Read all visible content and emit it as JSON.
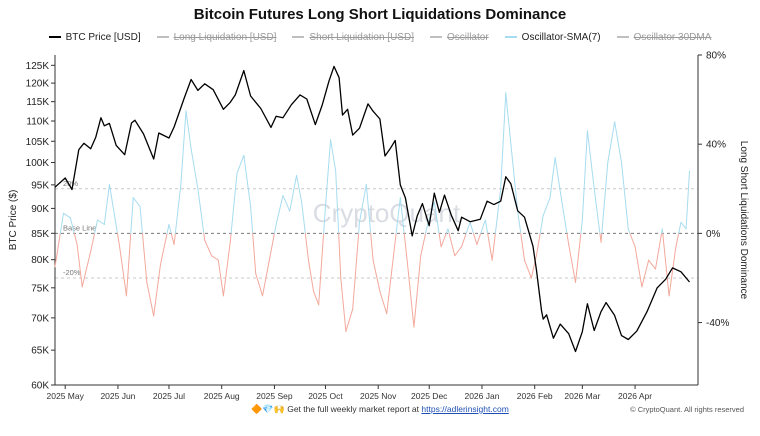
{
  "chart_data": {
    "type": "line",
    "title": "Bitcoin Futures Long Short Liquidations Dominance",
    "watermark": "CryptoQuant",
    "legend": [
      {
        "name": "BTC Price [USD]",
        "color": "#000000",
        "visible": true
      },
      {
        "name": "Long Liquidation [USD]",
        "color": "#9a9a9a",
        "visible": false
      },
      {
        "name": "Short Liquidation [USD]",
        "color": "#9a9a9a",
        "visible": false
      },
      {
        "name": "Oscillator",
        "color": "#9a9a9a",
        "visible": false
      },
      {
        "name": "Oscillator-SMA(7)",
        "color": "#a6dcef",
        "visible": true
      },
      {
        "name": "Oscillator 30DMA",
        "color": "#9a9a9a",
        "visible": false
      }
    ],
    "legend_placement": "top-center",
    "y_left": {
      "label": "BTC Price ($)",
      "scale": "log",
      "range": [
        60000,
        128000
      ],
      "ticks": [
        60000,
        65000,
        70000,
        75000,
        80000,
        85000,
        90000,
        95000,
        100000,
        105000,
        110000,
        115000,
        120000,
        125000
      ],
      "tick_labels": [
        "60K",
        "65K",
        "70K",
        "75K",
        "80K",
        "85K",
        "90K",
        "95K",
        "100K",
        "105K",
        "110K",
        "115K",
        "120K",
        "125K"
      ]
    },
    "y_right": {
      "label": "Long Short Liquidations Dominance",
      "range": [
        -68,
        80
      ],
      "ticks": [
        80,
        40,
        0,
        -40
      ],
      "tick_labels": [
        "80%",
        "40%",
        "0%",
        "-40%"
      ]
    },
    "x_axis": {
      "start": "2025-04-25",
      "end": "2026-05-08",
      "ticks": [
        "2025-05-01",
        "2025-06-01",
        "2025-07-01",
        "2025-08-01",
        "2025-09-01",
        "2025-10-01",
        "2025-11-01",
        "2025-12-01",
        "2026-01-01",
        "2026-02-01",
        "2026-03-01",
        "2026-04-01"
      ],
      "tick_labels": [
        "2025 May",
        "2025 Jun",
        "2025 Jul",
        "2025 Aug",
        "2025 Sep",
        "2025 Oct",
        "2025 Nov",
        "2025 Dec",
        "2026 Jan",
        "2026 Feb",
        "2026 Mar",
        "2026 Apr"
      ]
    },
    "reference_lines": [
      {
        "value": 20,
        "label": "20%"
      },
      {
        "value": 0,
        "label": "Base Line"
      },
      {
        "value": -20,
        "label": "-20%"
      }
    ],
    "grid": false,
    "series": [
      {
        "name": "BTC Price [USD]",
        "axis": "left",
        "color": "#000000",
        "points": [
          [
            "2025-04-25",
            94500
          ],
          [
            "2025-05-01",
            96500
          ],
          [
            "2025-05-05",
            94000
          ],
          [
            "2025-05-09",
            103000
          ],
          [
            "2025-05-12",
            104500
          ],
          [
            "2025-05-16",
            103200
          ],
          [
            "2025-05-19",
            106000
          ],
          [
            "2025-05-22",
            110800
          ],
          [
            "2025-05-24",
            108800
          ],
          [
            "2025-05-27",
            109400
          ],
          [
            "2025-05-31",
            104000
          ],
          [
            "2025-06-05",
            101800
          ],
          [
            "2025-06-09",
            109500
          ],
          [
            "2025-06-11",
            110200
          ],
          [
            "2025-06-16",
            106800
          ],
          [
            "2025-06-22",
            100800
          ],
          [
            "2025-06-25",
            107000
          ],
          [
            "2025-07-01",
            105800
          ],
          [
            "2025-07-04",
            108500
          ],
          [
            "2025-07-10",
            116000
          ],
          [
            "2025-07-14",
            121000
          ],
          [
            "2025-07-18",
            118000
          ],
          [
            "2025-07-22",
            119800
          ],
          [
            "2025-07-27",
            118200
          ],
          [
            "2025-08-02",
            113000
          ],
          [
            "2025-08-06",
            114800
          ],
          [
            "2025-08-09",
            116800
          ],
          [
            "2025-08-14",
            123500
          ],
          [
            "2025-08-18",
            116500
          ],
          [
            "2025-08-24",
            113200
          ],
          [
            "2025-08-30",
            108400
          ],
          [
            "2025-09-02",
            111200
          ],
          [
            "2025-09-06",
            110800
          ],
          [
            "2025-09-11",
            114200
          ],
          [
            "2025-09-16",
            116800
          ],
          [
            "2025-09-20",
            115700
          ],
          [
            "2025-09-25",
            109100
          ],
          [
            "2025-09-29",
            114000
          ],
          [
            "2025-10-03",
            120500
          ],
          [
            "2025-10-06",
            124700
          ],
          [
            "2025-10-09",
            121500
          ],
          [
            "2025-10-11",
            111500
          ],
          [
            "2025-10-14",
            113000
          ],
          [
            "2025-10-17",
            106500
          ],
          [
            "2025-10-21",
            108200
          ],
          [
            "2025-10-26",
            114400
          ],
          [
            "2025-10-29",
            112500
          ],
          [
            "2025-11-02",
            110500
          ],
          [
            "2025-11-05",
            101500
          ],
          [
            "2025-11-08",
            103200
          ],
          [
            "2025-11-11",
            105200
          ],
          [
            "2025-11-14",
            95000
          ],
          [
            "2025-11-17",
            92200
          ],
          [
            "2025-11-21",
            84500
          ],
          [
            "2025-11-24",
            88500
          ],
          [
            "2025-11-27",
            91000
          ],
          [
            "2025-12-01",
            86500
          ],
          [
            "2025-12-04",
            93200
          ],
          [
            "2025-12-07",
            89200
          ],
          [
            "2025-12-10",
            92800
          ],
          [
            "2025-12-14",
            88600
          ],
          [
            "2025-12-18",
            85500
          ],
          [
            "2025-12-20",
            88200
          ],
          [
            "2025-12-25",
            87300
          ],
          [
            "2025-12-31",
            87800
          ],
          [
            "2026-01-04",
            91500
          ],
          [
            "2026-01-08",
            90800
          ],
          [
            "2026-01-12",
            91500
          ],
          [
            "2026-01-15",
            96800
          ],
          [
            "2026-01-18",
            95200
          ],
          [
            "2026-01-22",
            89500
          ],
          [
            "2026-01-26",
            88200
          ],
          [
            "2026-01-31",
            82500
          ],
          [
            "2026-02-02",
            78200
          ],
          [
            "2026-02-05",
            71200
          ],
          [
            "2026-02-06",
            69800
          ],
          [
            "2026-02-08",
            70500
          ],
          [
            "2026-02-12",
            66800
          ],
          [
            "2026-02-16",
            69000
          ],
          [
            "2026-02-21",
            67500
          ],
          [
            "2026-02-25",
            64800
          ],
          [
            "2026-03-01",
            67800
          ],
          [
            "2026-03-04",
            72300
          ],
          [
            "2026-03-08",
            68000
          ],
          [
            "2026-03-12",
            71000
          ],
          [
            "2026-03-15",
            72500
          ],
          [
            "2026-03-20",
            70400
          ],
          [
            "2026-03-24",
            67200
          ],
          [
            "2026-03-28",
            66600
          ],
          [
            "2026-04-02",
            67900
          ],
          [
            "2026-04-08",
            71000
          ],
          [
            "2026-04-14",
            75000
          ],
          [
            "2026-04-19",
            76500
          ],
          [
            "2026-04-23",
            78500
          ],
          [
            "2026-04-28",
            77800
          ],
          [
            "2026-05-03",
            76000
          ]
        ]
      },
      {
        "name": "Oscillator-SMA(7)",
        "axis": "right",
        "color_positive": "#a6dcef",
        "color_negative": "#f3a89b",
        "points": [
          [
            "2025-04-25",
            -15
          ],
          [
            "2025-04-30",
            9
          ],
          [
            "2025-05-04",
            7
          ],
          [
            "2025-05-08",
            -5
          ],
          [
            "2025-05-11",
            -24
          ],
          [
            "2025-05-16",
            -8
          ],
          [
            "2025-05-20",
            6
          ],
          [
            "2025-05-24",
            4
          ],
          [
            "2025-05-27",
            22
          ],
          [
            "2025-06-02",
            -6
          ],
          [
            "2025-06-06",
            -28
          ],
          [
            "2025-06-10",
            16
          ],
          [
            "2025-06-14",
            12
          ],
          [
            "2025-06-18",
            -22
          ],
          [
            "2025-06-22",
            -37
          ],
          [
            "2025-06-26",
            -14
          ],
          [
            "2025-07-01",
            4
          ],
          [
            "2025-07-04",
            -5
          ],
          [
            "2025-07-08",
            22
          ],
          [
            "2025-07-11",
            55
          ],
          [
            "2025-07-14",
            38
          ],
          [
            "2025-07-18",
            20
          ],
          [
            "2025-07-22",
            -3
          ],
          [
            "2025-07-26",
            -10
          ],
          [
            "2025-07-30",
            -12
          ],
          [
            "2025-08-02",
            -28
          ],
          [
            "2025-08-06",
            -4
          ],
          [
            "2025-08-10",
            27
          ],
          [
            "2025-08-14",
            35
          ],
          [
            "2025-08-18",
            12
          ],
          [
            "2025-08-21",
            -18
          ],
          [
            "2025-08-25",
            -28
          ],
          [
            "2025-08-29",
            -12
          ],
          [
            "2025-09-02",
            4
          ],
          [
            "2025-09-06",
            17
          ],
          [
            "2025-09-10",
            10
          ],
          [
            "2025-09-14",
            26
          ],
          [
            "2025-09-17",
            14
          ],
          [
            "2025-09-21",
            -12
          ],
          [
            "2025-09-24",
            -26
          ],
          [
            "2025-09-27",
            -32
          ],
          [
            "2025-10-01",
            12
          ],
          [
            "2025-10-04",
            42
          ],
          [
            "2025-10-07",
            28
          ],
          [
            "2025-10-10",
            -20
          ],
          [
            "2025-10-13",
            -44
          ],
          [
            "2025-10-17",
            -34
          ],
          [
            "2025-10-21",
            5
          ],
          [
            "2025-10-25",
            22
          ],
          [
            "2025-10-29",
            -12
          ],
          [
            "2025-11-02",
            -26
          ],
          [
            "2025-11-06",
            -36
          ],
          [
            "2025-11-10",
            -10
          ],
          [
            "2025-11-14",
            16
          ],
          [
            "2025-11-18",
            -12
          ],
          [
            "2025-11-22",
            -42
          ],
          [
            "2025-11-26",
            -10
          ],
          [
            "2025-11-30",
            4
          ],
          [
            "2025-12-04",
            14
          ],
          [
            "2025-12-08",
            -6
          ],
          [
            "2025-12-12",
            2
          ],
          [
            "2025-12-16",
            -10
          ],
          [
            "2025-12-20",
            -6
          ],
          [
            "2025-12-25",
            5
          ],
          [
            "2025-12-29",
            -5
          ],
          [
            "2026-01-03",
            6
          ],
          [
            "2026-01-07",
            -12
          ],
          [
            "2026-01-12",
            20
          ],
          [
            "2026-01-15",
            63
          ],
          [
            "2026-01-18",
            40
          ],
          [
            "2026-01-22",
            10
          ],
          [
            "2026-01-26",
            -12
          ],
          [
            "2026-01-30",
            -20
          ],
          [
            "2026-02-02",
            -10
          ],
          [
            "2026-02-06",
            8
          ],
          [
            "2026-02-10",
            16
          ],
          [
            "2026-02-13",
            34
          ],
          [
            "2026-02-17",
            14
          ],
          [
            "2026-02-21",
            -5
          ],
          [
            "2026-02-25",
            -22
          ],
          [
            "2026-03-01",
            6
          ],
          [
            "2026-03-04",
            46
          ],
          [
            "2026-03-08",
            20
          ],
          [
            "2026-03-12",
            -4
          ],
          [
            "2026-03-16",
            32
          ],
          [
            "2026-03-20",
            50
          ],
          [
            "2026-03-24",
            32
          ],
          [
            "2026-03-28",
            2
          ],
          [
            "2026-04-01",
            -6
          ],
          [
            "2026-04-05",
            -24
          ],
          [
            "2026-04-09",
            -12
          ],
          [
            "2026-04-13",
            -16
          ],
          [
            "2026-04-17",
            2
          ],
          [
            "2026-04-21",
            -28
          ],
          [
            "2026-04-25",
            -6
          ],
          [
            "2026-04-28",
            5
          ],
          [
            "2026-05-01",
            2
          ],
          [
            "2026-05-03",
            28
          ]
        ]
      }
    ]
  },
  "footer": {
    "promo_emojis": "🔶💎🙌",
    "promo_text": "Get the full weekly market report at",
    "promo_link": "https://adlerinsight.com",
    "copyright": "© CryptoQuant. All rights reserved"
  }
}
